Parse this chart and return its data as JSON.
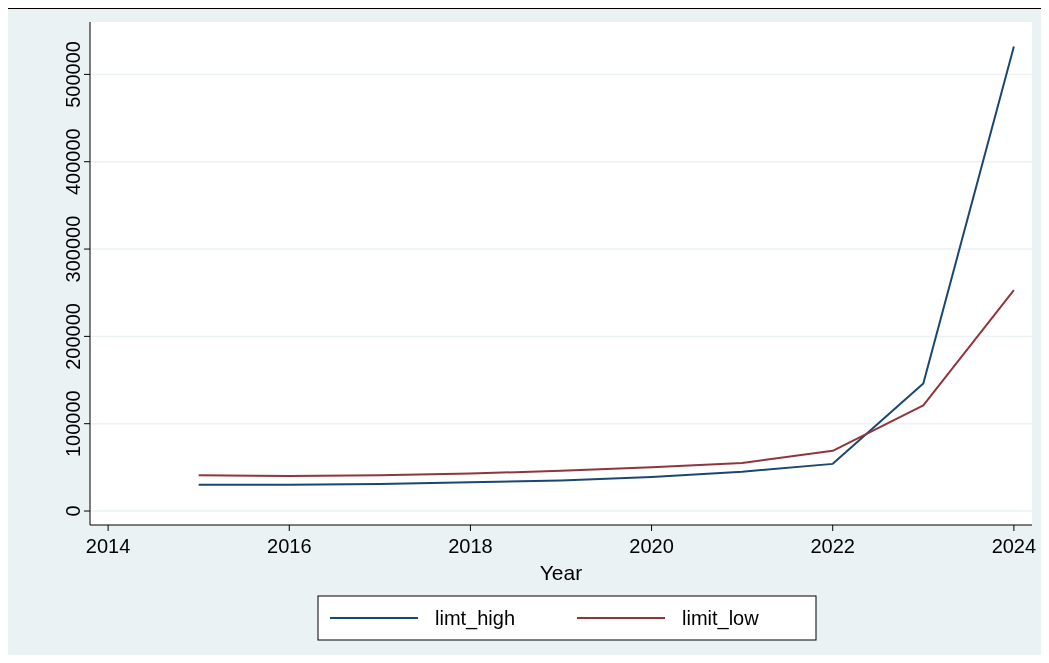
{
  "chart_data": {
    "type": "line",
    "xlabel": "Year",
    "x": [
      2015,
      2016,
      2017,
      2018,
      2019,
      2020,
      2021,
      2022,
      2023,
      2024
    ],
    "series": [
      {
        "name": "limt_high",
        "color": "#1a476f",
        "values": [
          30000,
          30000,
          31000,
          33000,
          35000,
          39000,
          45000,
          54000,
          146000,
          532000
        ]
      },
      {
        "name": "limit_low",
        "color": "#90353b",
        "values": [
          41000,
          40000,
          41000,
          43000,
          46000,
          50000,
          55000,
          69000,
          121000,
          253000
        ]
      }
    ],
    "xlim": [
      2013.8,
      2024.2
    ],
    "xticks": [
      2014,
      2016,
      2018,
      2020,
      2022,
      2024
    ],
    "ylim": [
      -16000,
      560000
    ],
    "yticks": [
      0,
      100000,
      200000,
      300000,
      400000,
      500000
    ],
    "grid": "y",
    "legend": "bottom",
    "marker": "none",
    "line_style": "solid"
  }
}
